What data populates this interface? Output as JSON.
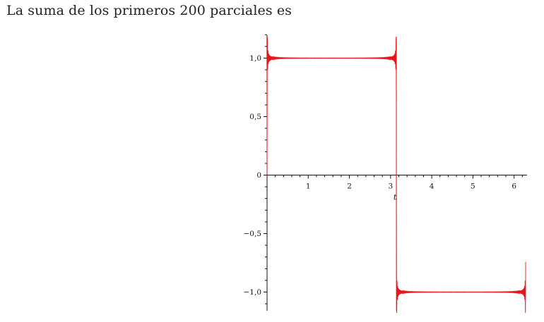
{
  "heading": "La suma de los primeros 200 parciales es",
  "chart_data": {
    "type": "line",
    "title": "",
    "xlabel": "t",
    "ylabel": "",
    "xlim": [
      0,
      6.28
    ],
    "ylim": [
      -1.18,
      1.2
    ],
    "x_ticks": [
      1,
      2,
      3,
      4,
      5,
      6
    ],
    "x_tick_labels": [
      "1",
      "2",
      "3",
      "4",
      "5",
      "6"
    ],
    "y_ticks": [
      1.0,
      0.5,
      0,
      -0.5,
      -1.0
    ],
    "y_tick_labels": [
      "1,0",
      "0,5",
      "0",
      "−0,5",
      "−1,0"
    ],
    "grid": false,
    "series": [
      {
        "color": "#e8161b",
        "description_of_values": "partial Fourier sum with 200 terms of a square wave: +1 on (0, pi), -1 on (pi, 2*pi)",
        "points": [
          [
            0.0,
            0.0
          ],
          [
            0.02,
            1.12
          ],
          [
            0.05,
            0.97
          ],
          [
            0.1,
            1.02
          ],
          [
            0.2,
            0.99
          ],
          [
            0.4,
            1.01
          ],
          [
            0.8,
            0.995
          ],
          [
            1.2,
            1.005
          ],
          [
            1.6,
            0.995
          ],
          [
            2.0,
            1.005
          ],
          [
            2.4,
            0.995
          ],
          [
            2.8,
            1.005
          ],
          [
            3.05,
            1.01
          ],
          [
            3.1,
            1.04
          ],
          [
            3.1416,
            0.0
          ],
          [
            3.18,
            -1.04
          ],
          [
            3.25,
            -0.99
          ],
          [
            3.6,
            -1.005
          ],
          [
            4.0,
            -0.995
          ],
          [
            4.4,
            -1.005
          ],
          [
            4.8,
            -0.995
          ],
          [
            5.2,
            -1.005
          ],
          [
            5.6,
            -0.995
          ],
          [
            6.0,
            -1.005
          ],
          [
            6.2,
            -1.03
          ],
          [
            6.26,
            -1.12
          ],
          [
            6.28,
            0.0
          ]
        ]
      }
    ]
  }
}
